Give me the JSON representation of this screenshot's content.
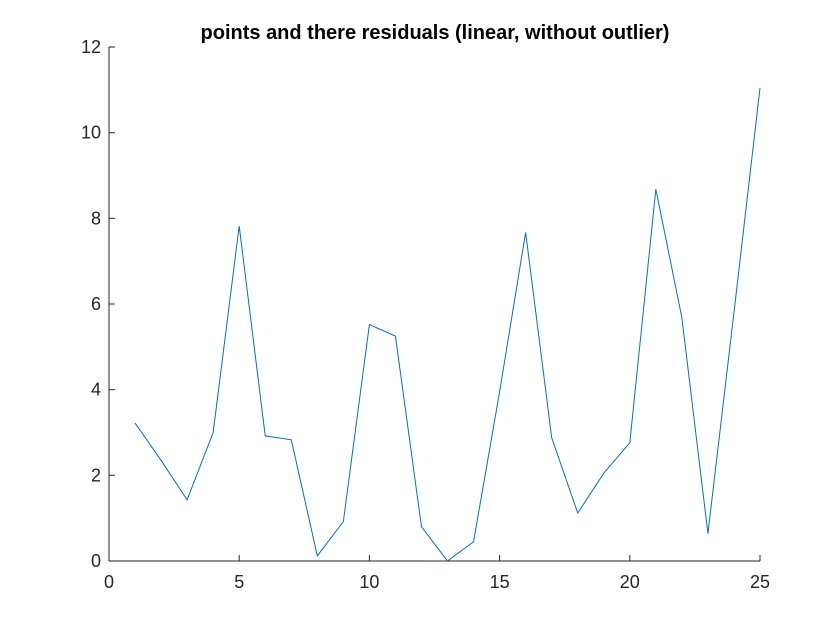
{
  "chart_data": {
    "type": "line",
    "title": "points and there residuals (linear, without outlier)",
    "xlabel": "",
    "ylabel": "",
    "xlim": [
      0,
      25
    ],
    "ylim": [
      0,
      12
    ],
    "xticks": [
      0,
      5,
      10,
      15,
      20,
      25
    ],
    "yticks": [
      0,
      2,
      4,
      6,
      8,
      10,
      12
    ],
    "grid": false,
    "series": [
      {
        "color": "#0072bd",
        "x": [
          1,
          2,
          3,
          4,
          5,
          6,
          7,
          8,
          9,
          10,
          11,
          12,
          13,
          14,
          15,
          16,
          17,
          18,
          19,
          20,
          21,
          22,
          23,
          24,
          25
        ],
        "y": [
          3.22,
          2.35,
          1.43,
          3.0,
          7.82,
          2.92,
          2.83,
          0.12,
          0.92,
          5.52,
          5.25,
          0.8,
          0.0,
          0.45,
          3.95,
          7.67,
          2.88,
          1.12,
          2.05,
          2.76,
          8.68,
          5.68,
          0.64,
          5.8,
          11.04
        ]
      }
    ]
  }
}
